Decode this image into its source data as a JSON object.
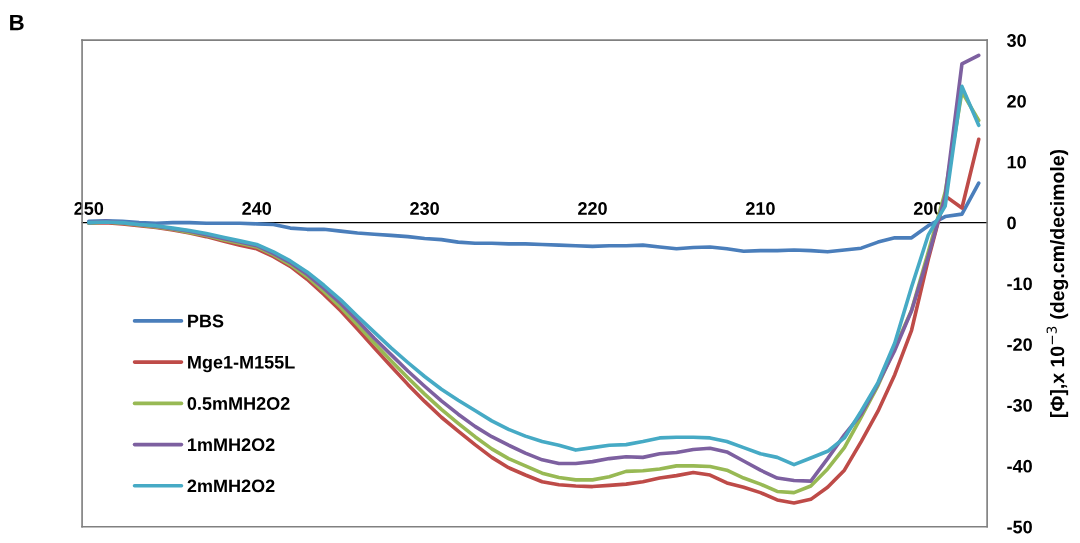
{
  "chart_data": {
    "type": "line",
    "title": "B",
    "ylabel": "[Φ],x 10$^{−3}$ (deg.cm/decimole)",
    "x": [
      250,
      249,
      248,
      247,
      246,
      245,
      244,
      243,
      242,
      241,
      240,
      239,
      238,
      237,
      236,
      235,
      234,
      233,
      232,
      231,
      230,
      229,
      228,
      227,
      226,
      225,
      224,
      223,
      222,
      221,
      220,
      219,
      218,
      217,
      216,
      215,
      214,
      213,
      212,
      211,
      210,
      209,
      208,
      207,
      206,
      205,
      204,
      203,
      202,
      201,
      200,
      199,
      198,
      197
    ],
    "series": [
      {
        "name": "PBS",
        "color": "#4a7ebb",
        "values": [
          0.2,
          0.3,
          0.2,
          0,
          -0.1,
          0,
          0,
          -0.1,
          -0.1,
          -0.1,
          -0.2,
          -0.3,
          -0.9,
          -1.1,
          -1.1,
          -1.4,
          -1.7,
          -1.9,
          -2.1,
          -2.3,
          -2.6,
          -2.8,
          -3.2,
          -3.4,
          -3.4,
          -3.5,
          -3.5,
          -3.6,
          -3.7,
          -3.8,
          -3.9,
          -3.8,
          -3.8,
          -3.7,
          -4.0,
          -4.3,
          -4.1,
          -4.0,
          -4.3,
          -4.7,
          -4.6,
          -4.6,
          -4.5,
          -4.6,
          -4.8,
          -4.5,
          -4.2,
          -3.2,
          -2.5,
          -2.5,
          -0.5,
          1.0,
          1.4,
          6.5
        ]
      },
      {
        "name": "Mge1-M155L",
        "color": "#be4b48",
        "values": [
          -0.1,
          0,
          -0.2,
          -0.5,
          -0.8,
          -1.2,
          -1.7,
          -2.3,
          -3.0,
          -3.7,
          -4.3,
          -5.6,
          -7.2,
          -9.3,
          -11.8,
          -14.5,
          -17.5,
          -20.6,
          -23.6,
          -26.6,
          -29.4,
          -32.0,
          -34.3,
          -36.5,
          -38.6,
          -40.3,
          -41.5,
          -42.6,
          -43.1,
          -43.3,
          -43.4,
          -43.2,
          -43.0,
          -42.6,
          -42.0,
          -41.6,
          -41.1,
          -41.5,
          -42.8,
          -43.5,
          -44.4,
          -45.6,
          -46.1,
          -45.5,
          -43.5,
          -40.7,
          -36.0,
          -31.0,
          -25.0,
          -17.7,
          -6.0,
          4.4,
          2.4,
          13.7
        ]
      },
      {
        "name": "0.5mMH2O2",
        "color": "#98b954",
        "values": [
          -0.1,
          0.1,
          -0.1,
          -0.4,
          -0.7,
          -1.1,
          -1.6,
          -2.1,
          -2.8,
          -3.4,
          -4.0,
          -5.3,
          -6.9,
          -8.9,
          -11.3,
          -13.9,
          -16.8,
          -19.8,
          -22.7,
          -25.5,
          -28.2,
          -30.7,
          -33.0,
          -35.2,
          -37.2,
          -38.8,
          -40.0,
          -41.2,
          -41.9,
          -42.3,
          -42.3,
          -41.8,
          -40.9,
          -40.8,
          -40.5,
          -40.0,
          -40.0,
          -40.1,
          -40.7,
          -42.0,
          -43.0,
          -44.2,
          -44.4,
          -43.3,
          -40.5,
          -37.0,
          -32.0,
          -26.8,
          -20.6,
          -14.4,
          -4.8,
          5.0,
          21.5,
          16.8
        ]
      },
      {
        "name": "1mMH2O2",
        "color": "#7d60a0",
        "values": [
          0,
          0.2,
          0,
          -0.3,
          -0.6,
          -1.0,
          -1.4,
          -2.0,
          -2.6,
          -3.2,
          -3.8,
          -5.1,
          -6.6,
          -8.5,
          -10.8,
          -13.3,
          -16.1,
          -19.0,
          -21.7,
          -24.4,
          -26.9,
          -29.3,
          -31.5,
          -33.5,
          -35.2,
          -36.6,
          -37.9,
          -39.0,
          -39.6,
          -39.6,
          -39.3,
          -38.8,
          -38.5,
          -38.6,
          -38.0,
          -37.8,
          -37.3,
          -37.1,
          -37.7,
          -39.2,
          -40.7,
          -42.0,
          -42.4,
          -42.5,
          -38.8,
          -34.9,
          -31.5,
          -26.5,
          -21.0,
          -14.5,
          -5.5,
          4.3,
          26.1,
          27.5
        ]
      },
      {
        "name": "2mMH2O2",
        "color": "#46aac5",
        "values": [
          0,
          0.1,
          0,
          -0.3,
          -0.5,
          -0.9,
          -1.3,
          -1.8,
          -2.4,
          -3.0,
          -3.6,
          -4.8,
          -6.3,
          -8.1,
          -10.3,
          -12.7,
          -15.4,
          -18.0,
          -20.6,
          -23.0,
          -25.3,
          -27.4,
          -29.2,
          -30.9,
          -32.6,
          -34.0,
          -35.1,
          -36.0,
          -36.6,
          -37.4,
          -37.0,
          -36.6,
          -36.5,
          -36.0,
          -35.4,
          -35.3,
          -35.3,
          -35.4,
          -36.0,
          -37.0,
          -38.0,
          -38.6,
          -39.8,
          -38.7,
          -37.6,
          -35.4,
          -31.0,
          -26.3,
          -19.8,
          -10.6,
          -2.0,
          2.7,
          22.4,
          16.0
        ]
      }
    ],
    "xlim": [
      250.4,
      196.5
    ],
    "xticks": [
      250,
      240,
      230,
      220,
      210,
      200
    ],
    "ylim": [
      -50,
      30
    ],
    "yticks": [
      -50,
      -40,
      -30,
      -20,
      -10,
      0,
      10,
      20,
      30
    ],
    "legend": "bottom left",
    "marker": "none",
    "line_style": "solid"
  }
}
